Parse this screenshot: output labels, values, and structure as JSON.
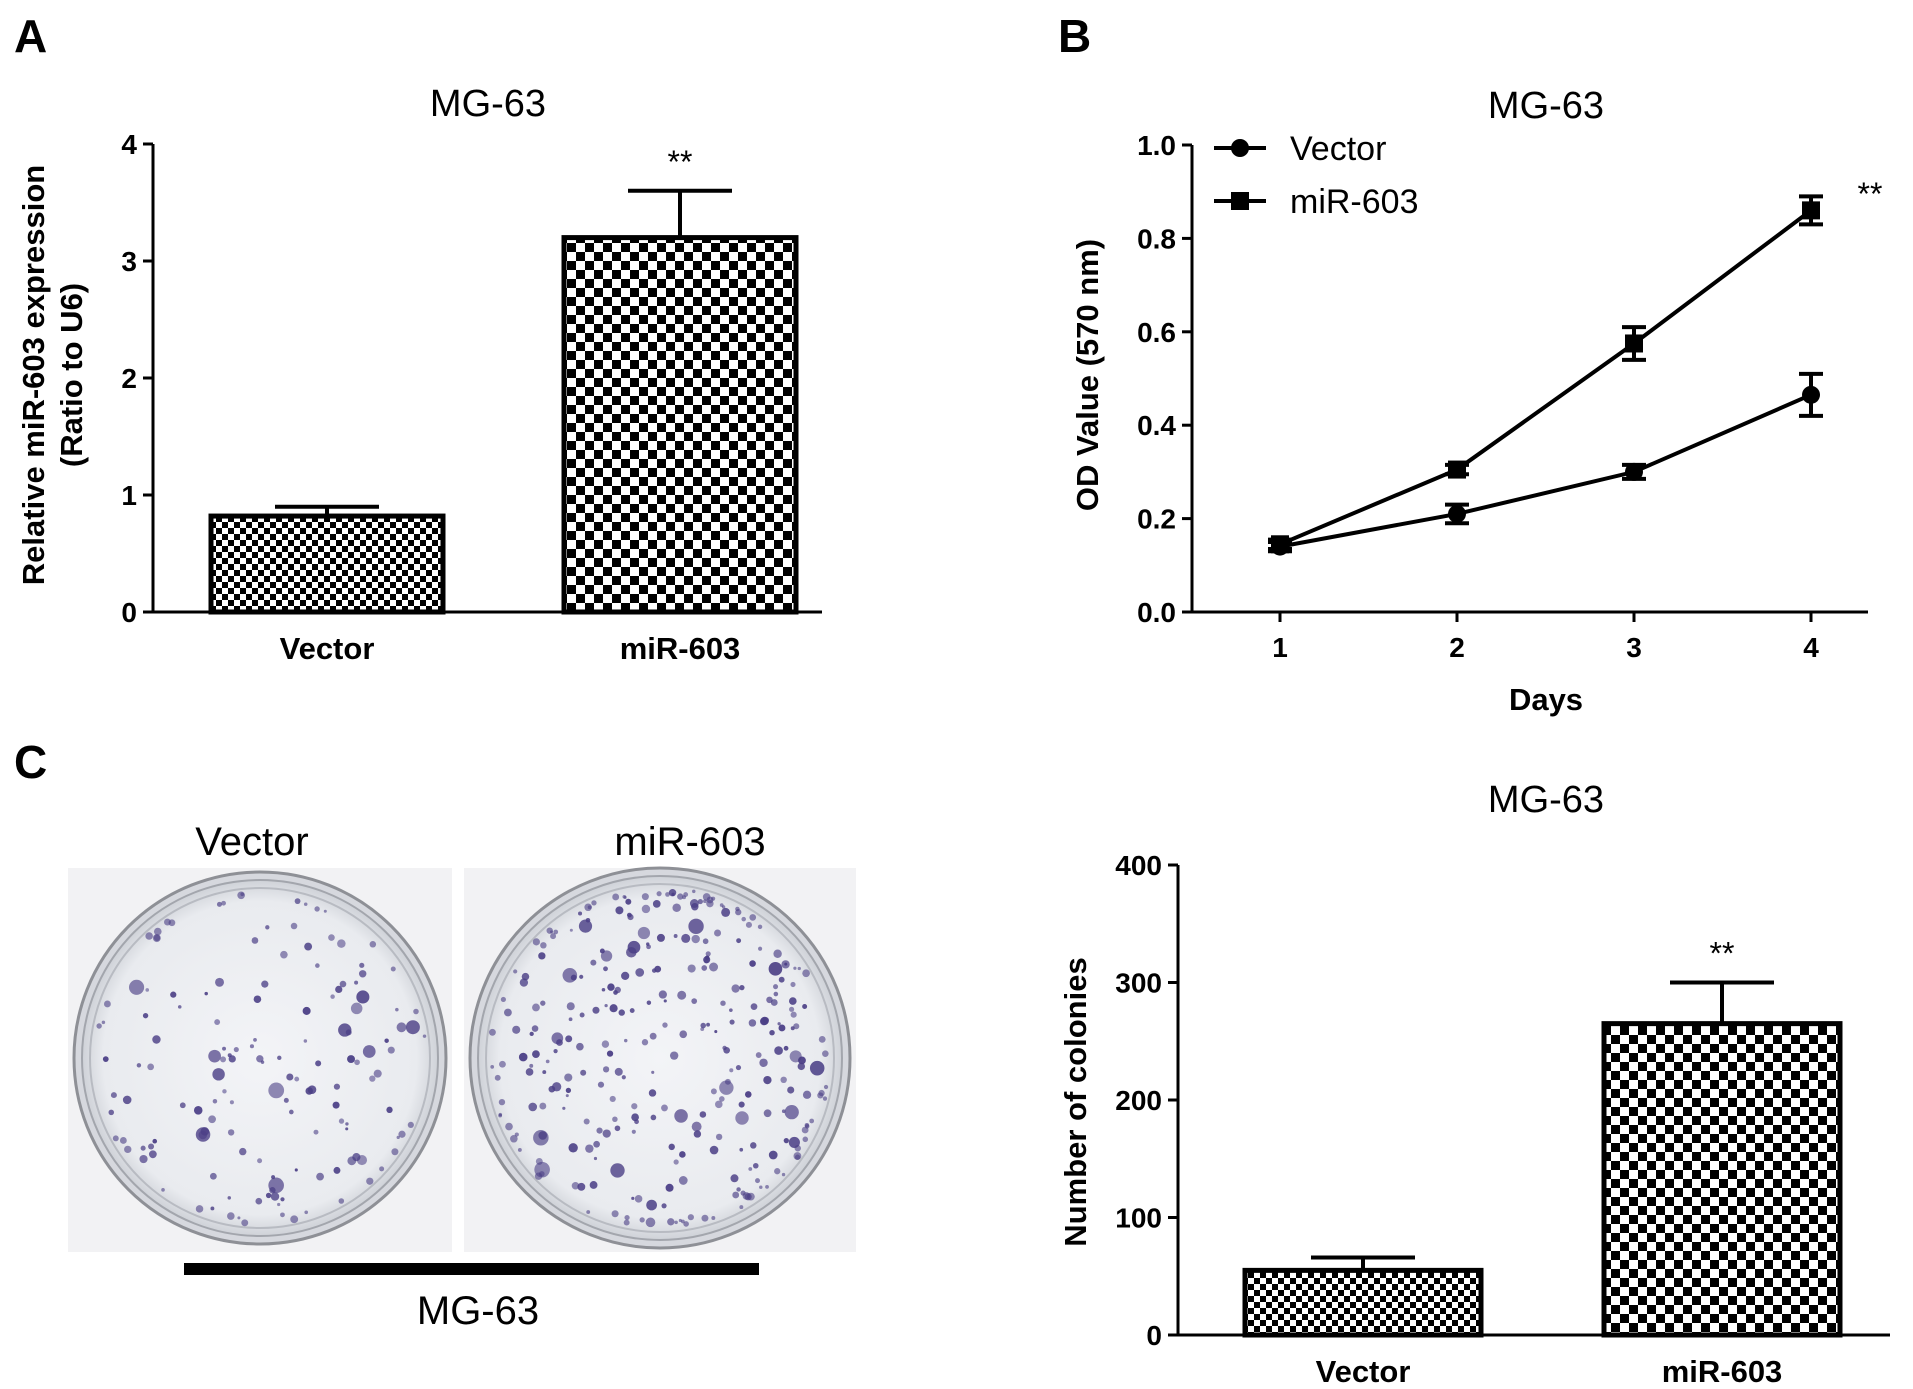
{
  "panels": {
    "a_label": "A",
    "b_label": "B",
    "c_label": "C"
  },
  "chart_data": [
    {
      "panel": "A",
      "type": "bar",
      "title": "MG-63",
      "ylabel": "Relative miR-603 expression (Ratio to  U6)",
      "ylabel_lines": [
        "Relative miR-603 expression",
        "(Ratio to  U6)"
      ],
      "xlabel": "",
      "categories": [
        "Vector",
        "miR-603"
      ],
      "values": [
        0.82,
        3.2
      ],
      "errors": [
        0.08,
        0.4
      ],
      "ylim": [
        0,
        4
      ],
      "yticks": [
        "0",
        "1",
        "2",
        "3",
        "4"
      ],
      "significance": [
        "",
        "**"
      ]
    },
    {
      "panel": "B",
      "type": "line",
      "title": "MG-63",
      "xlabel": "Days",
      "ylabel": "OD Value (570 nm)",
      "x": [
        1,
        2,
        3,
        4
      ],
      "xticks": [
        "1",
        "2",
        "3",
        "4"
      ],
      "ylim": [
        0,
        1.0
      ],
      "yticks": [
        "0.0",
        "0.2",
        "0.4",
        "0.6",
        "0.8",
        "1.0"
      ],
      "legend_position": "top-left",
      "significance": "**",
      "series": [
        {
          "name": "Vector",
          "marker": "circle",
          "values": [
            0.14,
            0.21,
            0.3,
            0.465
          ],
          "errors": [
            0.01,
            0.02,
            0.015,
            0.045
          ]
        },
        {
          "name": "miR-603",
          "marker": "square",
          "values": [
            0.145,
            0.305,
            0.575,
            0.86
          ],
          "errors": [
            0.01,
            0.01,
            0.035,
            0.03
          ]
        }
      ]
    },
    {
      "panel": "C",
      "type": "bar",
      "title": "MG-63",
      "ylabel": "Number of colonies",
      "xlabel": "",
      "categories": [
        "Vector",
        "miR-603"
      ],
      "values": [
        55,
        265
      ],
      "errors": [
        11,
        35
      ],
      "ylim": [
        0,
        400
      ],
      "yticks": [
        "0",
        "100",
        "200",
        "300",
        "400"
      ],
      "significance": [
        "",
        "**"
      ]
    }
  ],
  "colony_image": {
    "labels": [
      "Vector",
      "miR-603"
    ],
    "group_label": "MG-63",
    "colony_color": "#4b3f86",
    "dish_bg": "#eef0f3"
  }
}
